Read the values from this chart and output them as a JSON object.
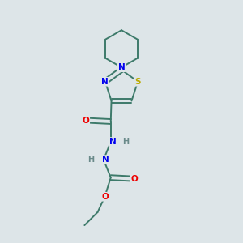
{
  "background_color": "#dde5e8",
  "atom_colors": {
    "C": "#3d7a6a",
    "N": "#0000ee",
    "O": "#ee0000",
    "S": "#bbaa00",
    "H": "#6a8a8a"
  },
  "bond_color": "#3d7a6a",
  "figsize": [
    3.0,
    3.0
  ],
  "dpi": 100
}
